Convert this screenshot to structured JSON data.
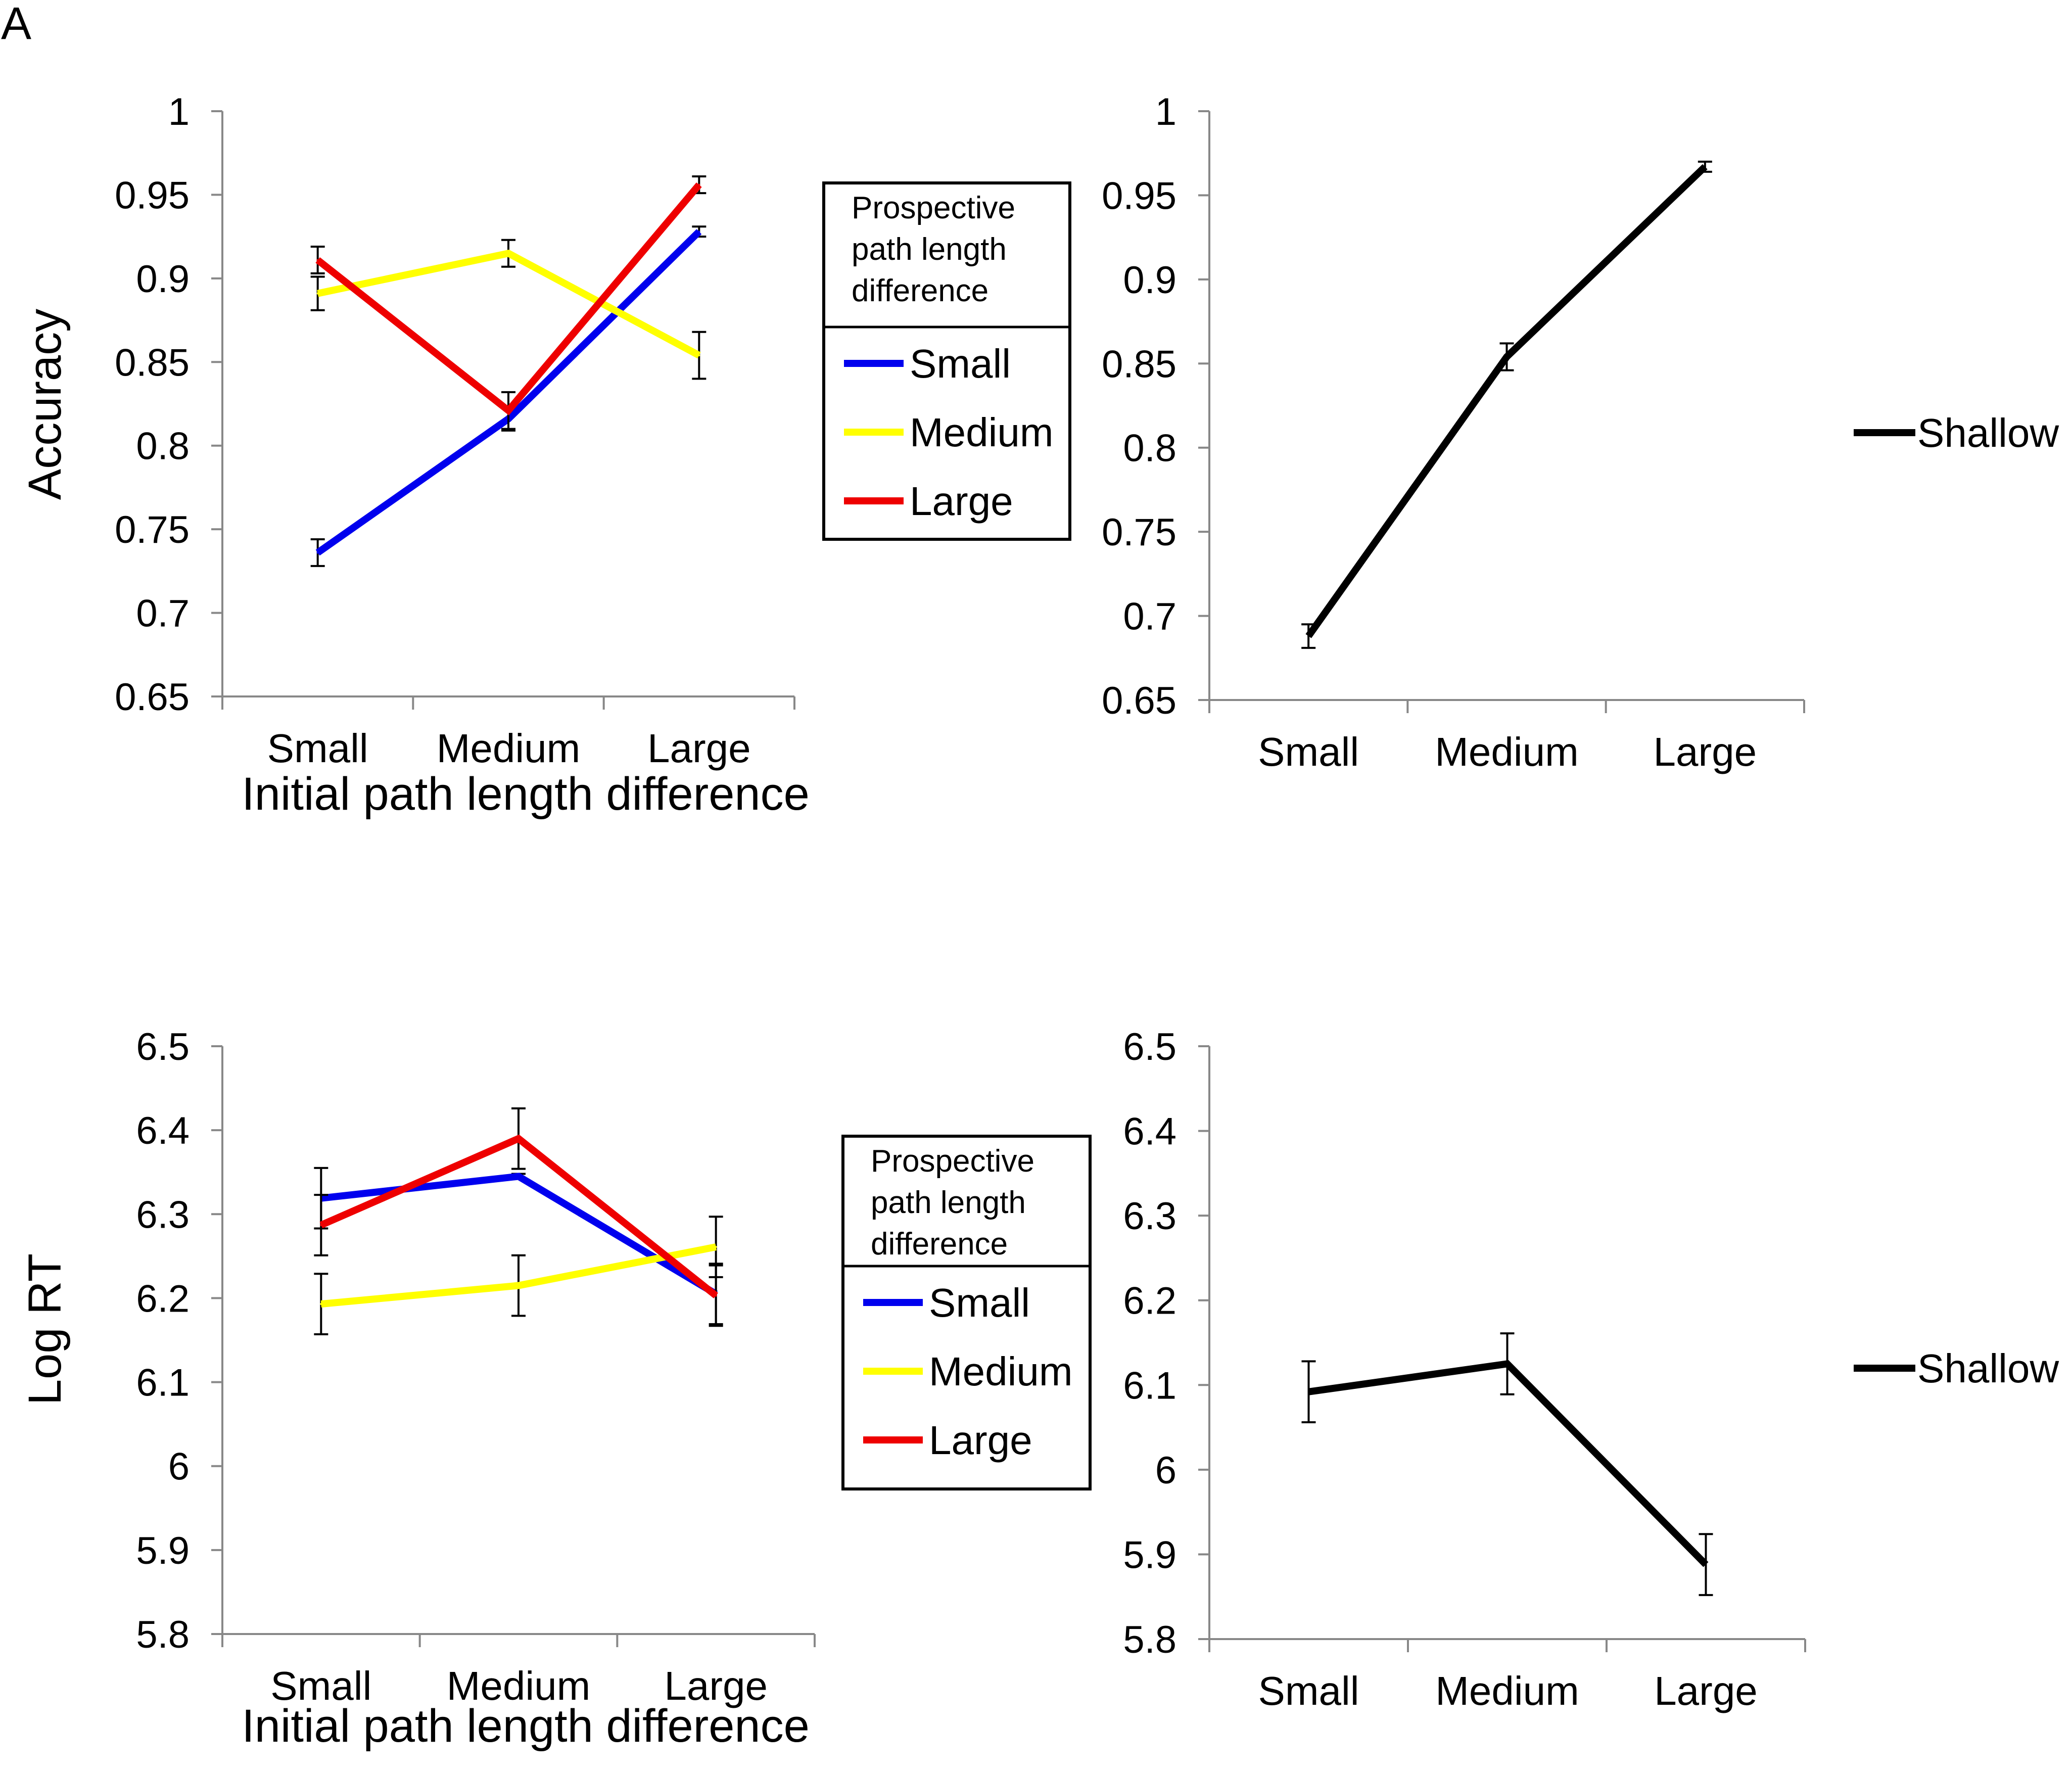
{
  "panel_label": "A",
  "chart_data": [
    {
      "id": "acc-by-prospective",
      "type": "line",
      "categories": [
        "Small",
        "Medium",
        "Large"
      ],
      "xlabel": "Initial path length difference",
      "ylabel": "Accuracy",
      "ylim": [
        0.65,
        1
      ],
      "yticks": [
        "0.65",
        "0.7",
        "0.75",
        "0.8",
        "0.85",
        "0.9",
        "0.95",
        "1"
      ],
      "grid": false,
      "legend": {
        "title_lines": [
          "Prospective",
          "path length",
          "difference"
        ],
        "placement": "right"
      },
      "series": [
        {
          "name": "Small",
          "color": "#0000ee",
          "values": [
            0.736,
            0.816,
            0.928
          ],
          "err": [
            0.008,
            0.007,
            0.003
          ]
        },
        {
          "name": "Medium",
          "color": "#ffff00",
          "values": [
            0.891,
            0.915,
            0.854
          ],
          "err": [
            0.01,
            0.008,
            0.014
          ]
        },
        {
          "name": "Large",
          "color": "#ee0000",
          "values": [
            0.911,
            0.821,
            0.956
          ],
          "err": [
            0.008,
            0.011,
            0.005
          ]
        }
      ]
    },
    {
      "id": "acc-shallow",
      "type": "line",
      "categories": [
        "Small",
        "Medium",
        "Large"
      ],
      "xlabel": "",
      "ylabel": "",
      "ylim": [
        0.65,
        1
      ],
      "yticks": [
        "0.65",
        "0.7",
        "0.75",
        "0.8",
        "0.85",
        "0.9",
        "0.95",
        "1"
      ],
      "grid": false,
      "legend": {
        "placement": "right"
      },
      "series": [
        {
          "name": "Shallow",
          "color": "#000000",
          "values": [
            0.688,
            0.854,
            0.967
          ],
          "err": [
            0.007,
            0.008,
            0.003
          ]
        }
      ]
    },
    {
      "id": "rt-by-prospective",
      "type": "line",
      "categories": [
        "Small",
        "Medium",
        "Large"
      ],
      "xlabel": "Initial path length difference",
      "ylabel": "Log RT",
      "ylim": [
        5.8,
        6.5
      ],
      "yticks": [
        "5.8",
        "5.9",
        "6",
        "6.1",
        "6.2",
        "6.3",
        "6.4",
        "6.5"
      ],
      "grid": false,
      "legend": {
        "title_lines": [
          "Prospective",
          "path length",
          "difference"
        ],
        "placement": "right"
      },
      "series": [
        {
          "name": "Small",
          "color": "#0000ee",
          "values": [
            6.319,
            6.345,
            6.205
          ],
          "err": [
            0.036,
            0.003,
            0.036
          ]
        },
        {
          "name": "Medium",
          "color": "#ffff00",
          "values": [
            6.193,
            6.215,
            6.261
          ],
          "err": [
            0.036,
            0.036,
            0.036
          ]
        },
        {
          "name": "Large",
          "color": "#ee0000",
          "values": [
            6.287,
            6.39,
            6.203
          ],
          "err": [
            0.036,
            0.036,
            0.036
          ]
        }
      ]
    },
    {
      "id": "rt-shallow",
      "type": "line",
      "categories": [
        "Small",
        "Medium",
        "Large"
      ],
      "xlabel": "",
      "ylabel": "",
      "ylim": [
        5.8,
        6.5
      ],
      "yticks": [
        "5.8",
        "5.9",
        "6",
        "6.1",
        "6.2",
        "6.3",
        "6.4",
        "6.5"
      ],
      "grid": false,
      "legend": {
        "placement": "right"
      },
      "series": [
        {
          "name": "Shallow",
          "color": "#000000",
          "values": [
            6.092,
            6.125,
            5.888
          ],
          "err": [
            0.036,
            0.036,
            0.036
          ]
        }
      ]
    }
  ]
}
